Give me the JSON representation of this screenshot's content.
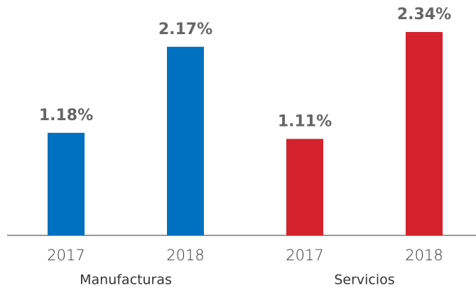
{
  "chart_data": {
    "type": "bar",
    "categories": [
      "2017",
      "2018",
      "2017",
      "2018"
    ],
    "group_labels": [
      "Manufacturas",
      "Servicios"
    ],
    "values": [
      1.18,
      2.17,
      1.11,
      2.34
    ],
    "value_labels": [
      "1.18%",
      "2.17%",
      "1.11%",
      "2.34%"
    ],
    "colors": [
      "#0070c0",
      "#0070c0",
      "#d4232c",
      "#d4232c"
    ],
    "ylim": [
      0,
      2.7
    ]
  }
}
